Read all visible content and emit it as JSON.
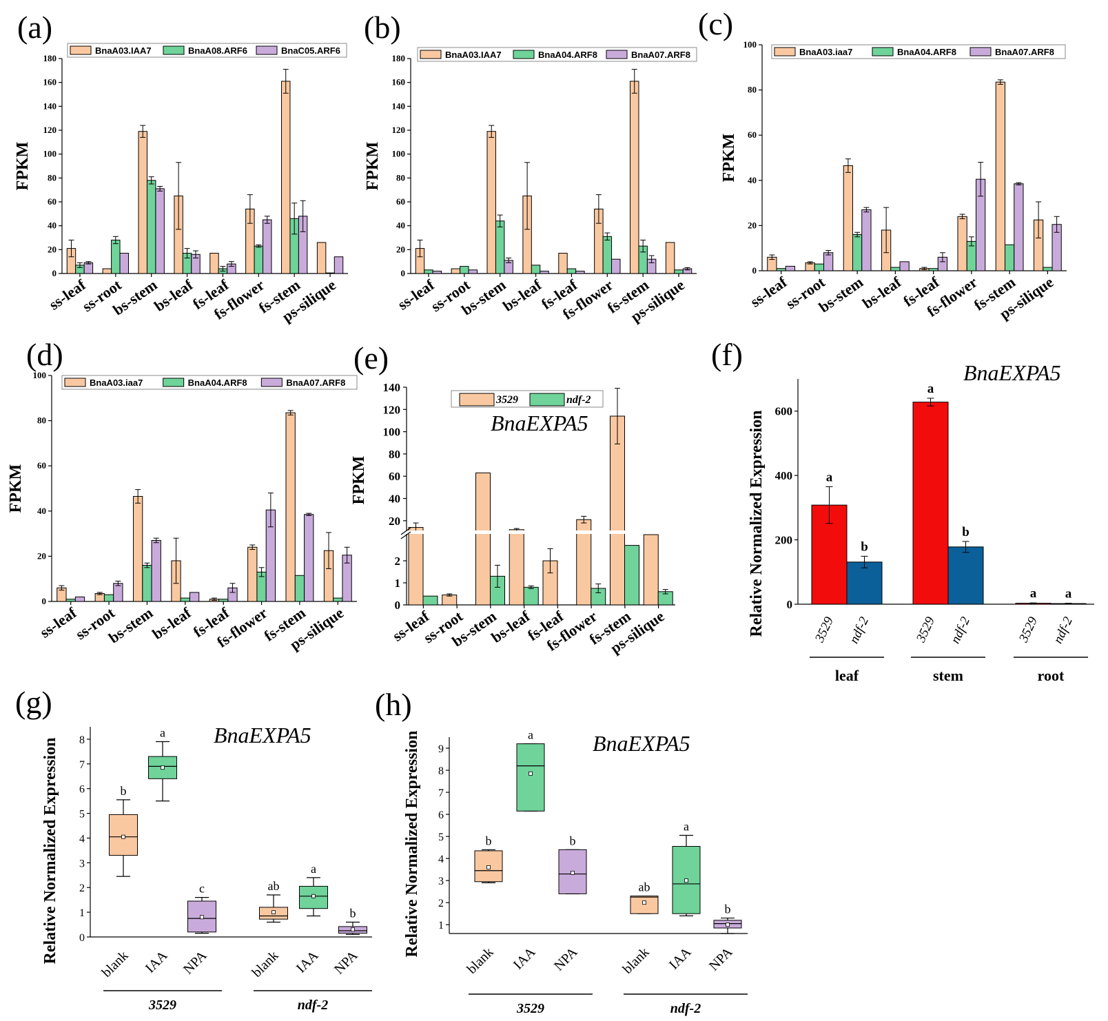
{
  "colors": {
    "orange": "#FAC8A0",
    "green": "#6FD39A",
    "purple": "#C9ABDB",
    "red": "#F20C0C",
    "blue": "#0B609A"
  },
  "chart_data": [
    {
      "panel": "(a)",
      "type": "bar",
      "ylabel": "FPKM",
      "ylim": [
        0,
        180
      ],
      "yticks": [
        0,
        20,
        40,
        60,
        80,
        100,
        120,
        140,
        160,
        180
      ],
      "categories": [
        "ss-leaf",
        "ss-root",
        "bs-stem",
        "bs-leaf",
        "fs-leaf",
        "fs-flower",
        "fs-stem",
        "ps-silique"
      ],
      "series": [
        {
          "name": "BnaA03.IAA7",
          "color": "orange",
          "values": [
            21,
            4,
            119,
            65,
            17,
            54,
            161,
            26
          ],
          "errors": [
            7,
            0,
            5,
            28,
            0,
            12,
            10,
            0
          ]
        },
        {
          "name": "BnaA08.ARF6",
          "color": "green",
          "values": [
            7,
            28,
            78,
            17,
            4,
            23,
            46,
            0.5
          ],
          "errors": [
            2,
            3,
            3,
            4,
            2,
            1,
            13,
            0
          ]
        },
        {
          "name": "BnaC05.ARF6",
          "color": "purple",
          "values": [
            9,
            17,
            71,
            16,
            8,
            45,
            48,
            14
          ],
          "errors": [
            1,
            0,
            2,
            3,
            2,
            3,
            13,
            0
          ]
        }
      ]
    },
    {
      "panel": "(b)",
      "type": "bar",
      "ylabel": "FPKM",
      "ylim": [
        0,
        180
      ],
      "yticks": [
        0,
        20,
        40,
        60,
        80,
        100,
        120,
        140,
        160,
        180
      ],
      "categories": [
        "ss-leaf",
        "ss-root",
        "bs-stem",
        "bs-leaf",
        "fs-leaf",
        "fs-flower",
        "fs-stem",
        "ps-silique"
      ],
      "series": [
        {
          "name": "BnaA03.IAA7",
          "color": "orange",
          "values": [
            21,
            4,
            119,
            65,
            17,
            54,
            161,
            26
          ],
          "errors": [
            7,
            0,
            5,
            28,
            0,
            12,
            10,
            0
          ]
        },
        {
          "name": "BnaA04.ARF8",
          "color": "green",
          "values": [
            3,
            6,
            44,
            7,
            4,
            31,
            23,
            3
          ],
          "errors": [
            0,
            0,
            5,
            0,
            0,
            3,
            5,
            0
          ]
        },
        {
          "name": "BnaA07.ARF8",
          "color": "purple",
          "values": [
            2,
            3,
            11,
            2,
            2,
            12,
            12,
            4
          ],
          "errors": [
            0,
            0,
            2,
            0,
            0,
            0,
            3,
            1
          ]
        }
      ]
    },
    {
      "panel": "(c)",
      "type": "bar",
      "ylabel": "FPKM",
      "ylim": [
        0,
        100
      ],
      "yticks": [
        0,
        20,
        40,
        60,
        80,
        100
      ],
      "categories": [
        "ss-leaf",
        "ss-root",
        "bs-stem",
        "bs-leaf",
        "fs-leaf",
        "fs-flower",
        "fs-stem",
        "ps-silique"
      ],
      "series": [
        {
          "name": "BnaA03.iaa7",
          "color": "orange",
          "values": [
            6,
            3.5,
            46.5,
            18,
            1,
            24,
            83.5,
            22.5
          ],
          "errors": [
            1,
            0.5,
            3,
            10,
            0.5,
            1,
            1,
            8
          ]
        },
        {
          "name": "BnaA04.ARF8",
          "color": "green",
          "values": [
            1,
            3,
            16,
            1.5,
            1,
            13,
            11.5,
            1.5
          ],
          "errors": [
            0,
            0,
            1,
            0,
            0,
            2,
            0,
            0
          ]
        },
        {
          "name": "BnaA07.ARF8",
          "color": "purple",
          "values": [
            2,
            8,
            27,
            4,
            6,
            40.5,
            38.5,
            20.5
          ],
          "errors": [
            0,
            1,
            1,
            0,
            2,
            7.5,
            0.5,
            3.5
          ]
        }
      ]
    },
    {
      "panel": "(d)",
      "type": "bar",
      "ylabel": "FPKM",
      "ylim": [
        0,
        100
      ],
      "yticks": [
        0,
        20,
        40,
        60,
        80,
        100
      ],
      "categories": [
        "ss-leaf",
        "ss-root",
        "bs-stem",
        "bs-leaf",
        "fs-leaf",
        "fs-flower",
        "fs-stem",
        "ps-silique"
      ],
      "series": [
        {
          "name": "BnaA03.iaa7",
          "color": "orange",
          "values": [
            6,
            3.5,
            46.5,
            18,
            1,
            24,
            83.5,
            22.5
          ],
          "errors": [
            1,
            0.5,
            3,
            10,
            0.5,
            1,
            1,
            8
          ]
        },
        {
          "name": "BnaA04.ARF8",
          "color": "green",
          "values": [
            1,
            3,
            16,
            1.5,
            1,
            13,
            11.5,
            1.5
          ],
          "errors": [
            0,
            0,
            1,
            0,
            0,
            2,
            0,
            0
          ]
        },
        {
          "name": "BnaA07.ARF8",
          "color": "purple",
          "values": [
            2,
            8,
            27,
            4,
            6,
            40.5,
            38.5,
            20.5
          ],
          "errors": [
            0,
            1,
            1,
            0,
            2,
            7.5,
            0.5,
            3.5
          ]
        }
      ]
    },
    {
      "panel": "(e)",
      "type": "bar",
      "title": "BnaEXPA5",
      "ylabel": "FPKM",
      "axis_break": true,
      "lower_ticks": [
        0,
        1,
        2
      ],
      "upper_ticks": [
        20,
        40,
        60,
        80,
        100,
        120,
        140
      ],
      "categories": [
        "ss-leaf",
        "ss-root",
        "bs-stem",
        "bs-leaf",
        "fs-leaf",
        "fs-flower",
        "fs-stem",
        "ps-silique"
      ],
      "series": [
        {
          "name": "3529",
          "color": "orange",
          "values": [
            14,
            0.45,
            63,
            12,
            2,
            21,
            114,
            7.5
          ],
          "errors": [
            4,
            0.05,
            0,
            1,
            0.55,
            3,
            25,
            0
          ]
        },
        {
          "name": "ndf-2",
          "color": "green",
          "values": [
            0.4,
            0,
            1.3,
            0.8,
            0,
            0.75,
            2.7,
            0.6
          ],
          "errors": [
            0,
            0,
            0.5,
            0.06,
            0,
            0.2,
            0,
            0.1
          ]
        }
      ]
    },
    {
      "panel": "(f)",
      "type": "bar",
      "title": "BnaEXPA5",
      "ylabel": "Relative Normalized Expression",
      "ylim": [
        0,
        700
      ],
      "yticks": [
        0,
        200,
        400,
        600
      ],
      "groups": [
        "leaf",
        "stem",
        "root"
      ],
      "genotypes": [
        "3529",
        "ndf-2"
      ],
      "bars": [
        {
          "group": "leaf",
          "genotype": "3529",
          "color": "red",
          "value": 308,
          "error": 57,
          "sig": "a"
        },
        {
          "group": "leaf",
          "genotype": "ndf-2",
          "color": "blue",
          "value": 131,
          "error": 18,
          "sig": "b"
        },
        {
          "group": "stem",
          "genotype": "3529",
          "color": "red",
          "value": 628,
          "error": 12,
          "sig": "a"
        },
        {
          "group": "stem",
          "genotype": "ndf-2",
          "color": "blue",
          "value": 178,
          "error": 17,
          "sig": "b"
        },
        {
          "group": "root",
          "genotype": "3529",
          "color": "red",
          "value": 3,
          "error": 1,
          "sig": "a"
        },
        {
          "group": "root",
          "genotype": "ndf-2",
          "color": "blue",
          "value": 2,
          "error": 1,
          "sig": "a"
        }
      ]
    },
    {
      "panel": "(g)",
      "type": "box",
      "title": "BnaEXPA5",
      "ylabel": "Relative Normalized Expression",
      "ylim": [
        0,
        8.5
      ],
      "yticks": [
        0,
        1,
        2,
        3,
        4,
        5,
        6,
        7,
        8
      ],
      "groups": [
        "3529",
        "ndf-2"
      ],
      "treatments": [
        "blank",
        "IAA",
        "NPA"
      ],
      "boxes": [
        {
          "group": "3529",
          "treatment": "blank",
          "color": "orange",
          "min": 2.45,
          "q1": 3.3,
          "median": 4.05,
          "q3": 4.95,
          "max": 5.55,
          "mean": 4.05,
          "sig": "b"
        },
        {
          "group": "3529",
          "treatment": "IAA",
          "color": "green",
          "min": 5.5,
          "q1": 6.4,
          "median": 6.9,
          "q3": 7.3,
          "max": 7.9,
          "mean": 6.85,
          "sig": "a"
        },
        {
          "group": "3529",
          "treatment": "NPA",
          "color": "purple",
          "min": 0.15,
          "q1": 0.2,
          "median": 0.75,
          "q3": 1.45,
          "max": 1.6,
          "mean": 0.8,
          "sig": "c"
        },
        {
          "group": "ndf-2",
          "treatment": "blank",
          "color": "orange",
          "min": 0.6,
          "q1": 0.72,
          "median": 0.85,
          "q3": 1.2,
          "max": 1.7,
          "mean": 1.0,
          "sig": "ab"
        },
        {
          "group": "ndf-2",
          "treatment": "IAA",
          "color": "green",
          "min": 0.85,
          "q1": 1.15,
          "median": 1.65,
          "q3": 2.05,
          "max": 2.4,
          "mean": 1.65,
          "sig": "a"
        },
        {
          "group": "ndf-2",
          "treatment": "NPA",
          "color": "purple",
          "min": 0.1,
          "q1": 0.15,
          "median": 0.25,
          "q3": 0.42,
          "max": 0.6,
          "mean": 0.3,
          "sig": "b"
        }
      ]
    },
    {
      "panel": "(h)",
      "type": "box",
      "title": "BnaEXPA5",
      "ylabel": "Relative Normalized Expression",
      "ylim": [
        0.6,
        9.5
      ],
      "yticks": [
        1,
        2,
        3,
        4,
        5,
        6,
        7,
        8,
        9
      ],
      "groups": [
        "3529",
        "ndf-2"
      ],
      "treatments": [
        "blank",
        "IAA",
        "NPA"
      ],
      "boxes": [
        {
          "group": "3529",
          "treatment": "blank",
          "color": "orange",
          "min": 2.9,
          "q1": 2.95,
          "median": 3.45,
          "q3": 4.35,
          "max": 4.4,
          "mean": 3.6,
          "sig": "b"
        },
        {
          "group": "3529",
          "treatment": "IAA",
          "color": "green",
          "min": 6.15,
          "q1": 6.15,
          "median": 8.2,
          "q3": 9.2,
          "max": 9.2,
          "mean": 7.85,
          "sig": "a"
        },
        {
          "group": "3529",
          "treatment": "NPA",
          "color": "purple",
          "min": 2.4,
          "q1": 2.4,
          "median": 3.3,
          "q3": 4.4,
          "max": 4.4,
          "mean": 3.35,
          "sig": "b"
        },
        {
          "group": "ndf-2",
          "treatment": "blank",
          "color": "orange",
          "min": 1.5,
          "q1": 1.5,
          "median": 2.25,
          "q3": 2.3,
          "max": 2.3,
          "mean": 2.0,
          "sig": "ab"
        },
        {
          "group": "ndf-2",
          "treatment": "IAA",
          "color": "green",
          "min": 1.4,
          "q1": 1.5,
          "median": 2.85,
          "q3": 4.55,
          "max": 5.05,
          "mean": 3.0,
          "sig": "a"
        },
        {
          "group": "ndf-2",
          "treatment": "NPA",
          "color": "purple",
          "min": 0.6,
          "q1": 0.85,
          "median": 1.05,
          "q3": 1.2,
          "max": 1.3,
          "mean": 1.0,
          "sig": "b"
        }
      ]
    }
  ]
}
